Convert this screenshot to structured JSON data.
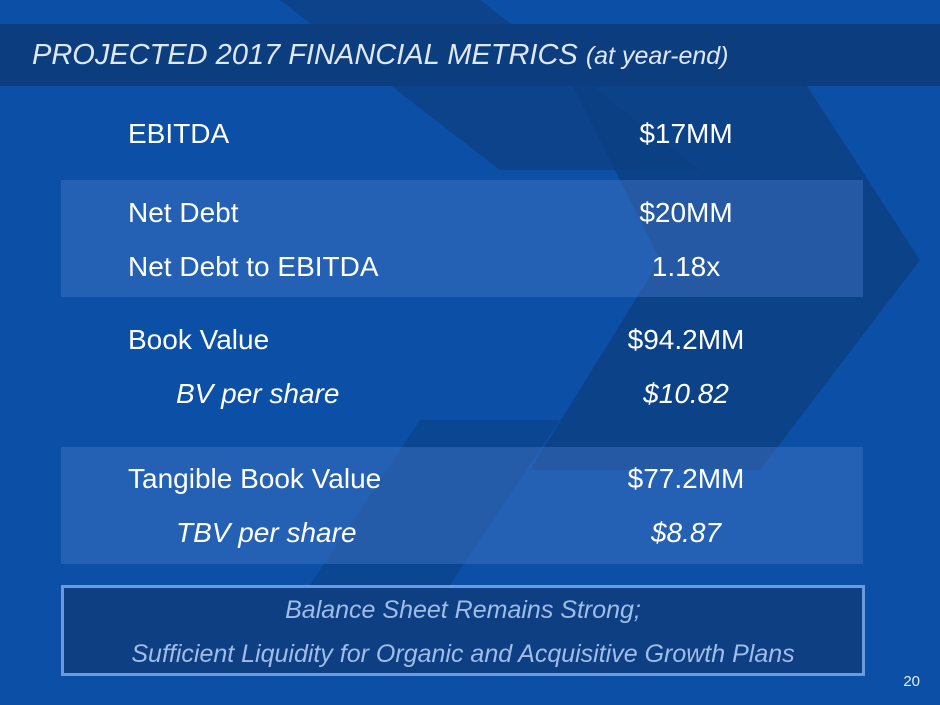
{
  "slide": {
    "title_main": "PROJECTED 2017 FINANCIAL METRICS",
    "title_sub": "(at year-end)",
    "colors": {
      "background": "#0b4fa6",
      "title_bar": "#0c3d7e",
      "chevron": "#0d3f82",
      "callout_border": "#6a9be0",
      "callout_text": "#9fbde8"
    },
    "metrics": [
      {
        "label": "EBITDA",
        "value": "$17MM"
      },
      {
        "label": "Net Debt",
        "value": "$20MM"
      },
      {
        "label": "Net Debt to EBITDA",
        "value": "1.18x"
      },
      {
        "label": "Book Value",
        "value": "$94.2MM"
      },
      {
        "label": "BV per share",
        "value": "$10.82"
      },
      {
        "label": "Tangible Book Value",
        "value": "$77.2MM"
      },
      {
        "label": "TBV per share",
        "value": "$8.87"
      }
    ],
    "callout": {
      "line1": "Balance Sheet Remains Strong;",
      "line2": "Sufficient Liquidity for Organic and Acquisitive Growth Plans"
    },
    "page_number": "20"
  }
}
